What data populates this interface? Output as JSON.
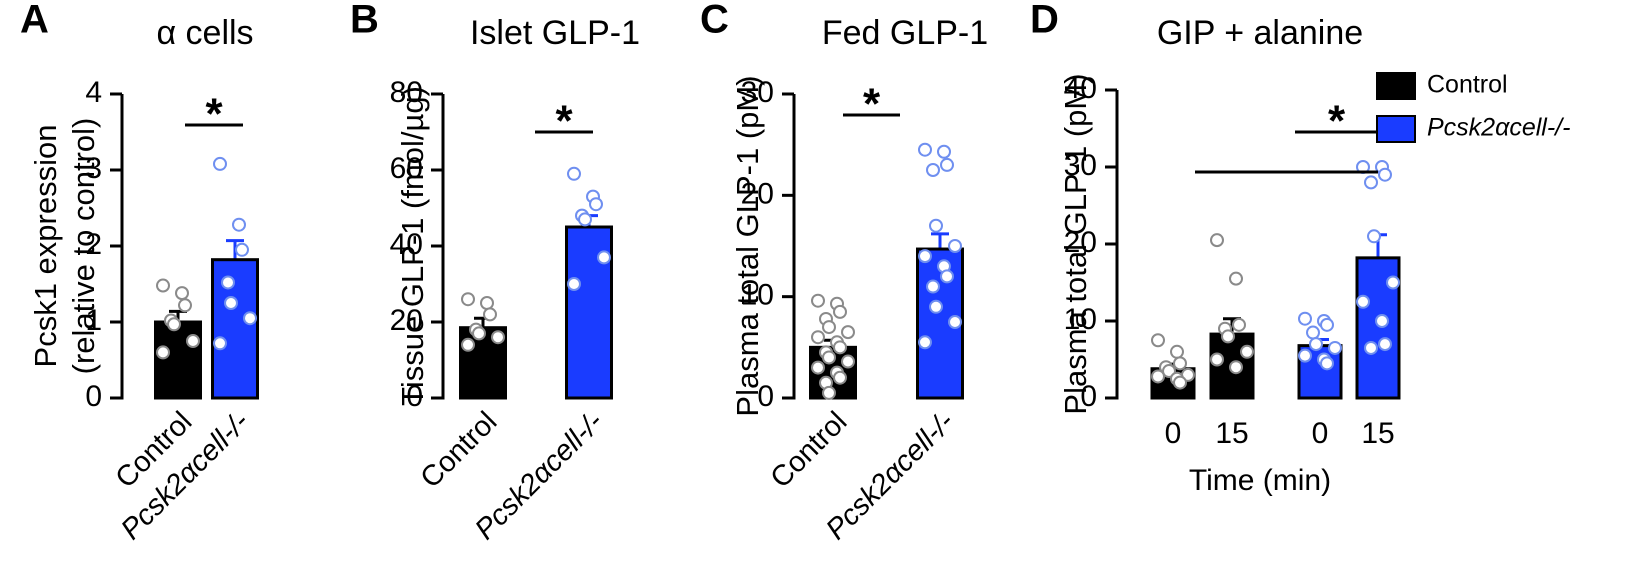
{
  "chart_data": [
    {
      "type": "bar",
      "panel": "A",
      "title": "α cells",
      "ylabel": [
        "Pcsk1 expression",
        "(relative to control)"
      ],
      "categories": [
        "Control",
        "Pcsk2αcell-/-"
      ],
      "colors": [
        "#000000",
        "#1a3cff"
      ],
      "point_colors": [
        "#8a8a8a",
        "#6f8ff0"
      ],
      "values": [
        1.0,
        1.82
      ],
      "errors": [
        0.14,
        0.25
      ],
      "points": [
        [
          1.48,
          1.38,
          1.22,
          1.02,
          0.97,
          0.75,
          0.6
        ],
        [
          3.08,
          2.28,
          1.95,
          1.52,
          1.25,
          1.05,
          0.72
        ]
      ],
      "ylim": [
        0,
        4
      ],
      "yticks": [
        0,
        1,
        2,
        3,
        4
      ],
      "significance": "*"
    },
    {
      "type": "bar",
      "panel": "B",
      "title": "Islet GLP-1",
      "ylabel": "Tissue GLP-1 (fmol/µg)",
      "categories": [
        "Control",
        "Pcsk2αcell-/-"
      ],
      "colors": [
        "#000000",
        "#1a3cff"
      ],
      "point_colors": [
        "#8a8a8a",
        "#6f8ff0"
      ],
      "values": [
        18.5,
        45
      ],
      "errors": [
        2.5,
        3
      ],
      "points": [
        [
          26,
          25,
          22,
          18,
          17,
          16,
          14
        ],
        [
          59,
          53,
          51,
          48,
          47,
          37,
          30
        ]
      ],
      "ylim": [
        0,
        80
      ],
      "yticks": [
        0,
        20,
        40,
        60,
        80
      ],
      "significance": "*"
    },
    {
      "type": "bar",
      "panel": "C",
      "title": "Fed GLP-1",
      "ylabel": "Plasma total GLP-1 (pM)",
      "categories": [
        "Control",
        "Pcsk2αcell-/-"
      ],
      "colors": [
        "#000000",
        "#1a3cff"
      ],
      "point_colors": [
        "#8a8a8a",
        "#6f8ff0"
      ],
      "values": [
        5,
        14.7
      ],
      "errors": [
        0.7,
        1.5
      ],
      "points": [
        [
          9.6,
          9.3,
          8.5,
          7.8,
          7,
          6.5,
          6,
          5.5,
          5,
          4.5,
          4,
          3.6,
          3,
          2.5,
          2,
          1.5,
          0.5
        ],
        [
          24.5,
          24.3,
          23,
          22.5,
          17,
          15,
          14,
          13,
          12,
          11,
          9,
          7.5,
          5.5
        ]
      ],
      "ylim": [
        0,
        30
      ],
      "yticks": [
        0,
        10,
        20,
        30
      ],
      "significance": "*"
    },
    {
      "type": "grouped-bar",
      "panel": "D",
      "title": "GIP + alanine",
      "ylabel": "Plasma total GLP-1 (pM)",
      "xlabel": "Time (min)",
      "categories": [
        "0",
        "15"
      ],
      "series": [
        {
          "name": "Control",
          "color": "#000000",
          "point_color": "#8a8a8a",
          "values": [
            3.8,
            8.3
          ],
          "errors": [
            0.6,
            2
          ],
          "points": [
            [
              7.5,
              6,
              4.5,
              4,
              3.5,
              3,
              2.8,
              2.5,
              2
            ],
            [
              20.5,
              15.5,
              9.5,
              9,
              8,
              6,
              5,
              4
            ]
          ]
        },
        {
          "name": "Pcsk2αcell-/-",
          "color": "#1a3cff",
          "point_color": "#6f8ff0",
          "values": [
            6.8,
            18.2
          ],
          "errors": [
            0.8,
            3
          ],
          "points": [
            [
              10.3,
              10,
              9.5,
              8.5,
              7,
              6.5,
              5.5,
              5,
              4.5
            ],
            [
              30,
              30,
              29,
              28,
              21,
              15,
              12.5,
              10,
              7,
              6.5
            ]
          ]
        }
      ],
      "ylim": [
        0,
        40
      ],
      "yticks": [
        0,
        10,
        20,
        30,
        40
      ],
      "significance": "*"
    }
  ]
}
